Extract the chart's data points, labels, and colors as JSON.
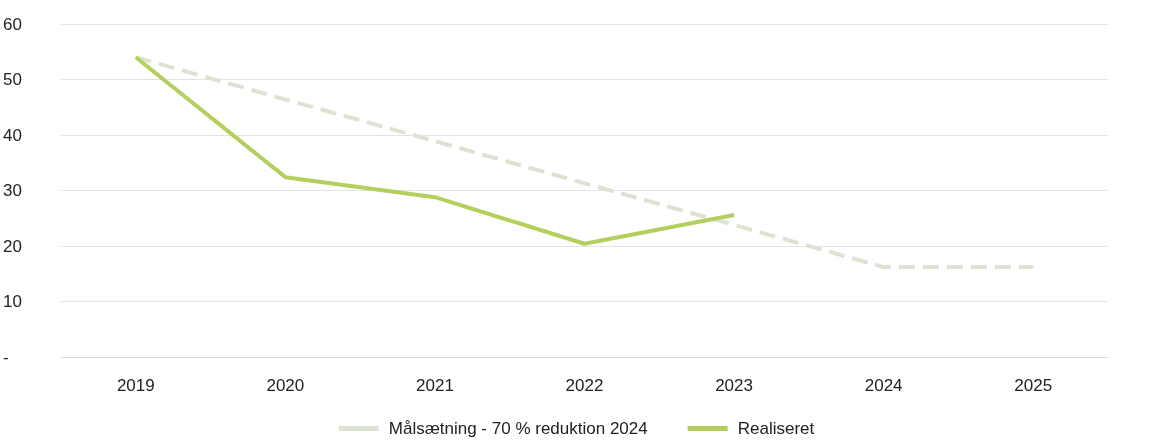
{
  "chart_data": {
    "type": "line",
    "categories": [
      "2019",
      "2020",
      "2021",
      "2022",
      "2023",
      "2024",
      "2025"
    ],
    "series": [
      {
        "name": "Målsætning - 70 % reduktion 2024",
        "color": "#dde3d3",
        "line_style": "dashed",
        "values": [
          54,
          46.4,
          38.9,
          31.3,
          23.8,
          16.2,
          16.2
        ]
      },
      {
        "name": "Realiseret",
        "color": "#b5cf5f",
        "line_style": "solid",
        "values": [
          54,
          32.4,
          28.8,
          20.4,
          25.6,
          null,
          null
        ]
      }
    ],
    "ylim": [
      0,
      60
    ],
    "yticks": [
      {
        "value": 0,
        "label": "-"
      },
      10,
      20,
      30,
      40,
      50,
      60
    ],
    "grid": "y",
    "legend": "bottom",
    "marker": "none"
  }
}
